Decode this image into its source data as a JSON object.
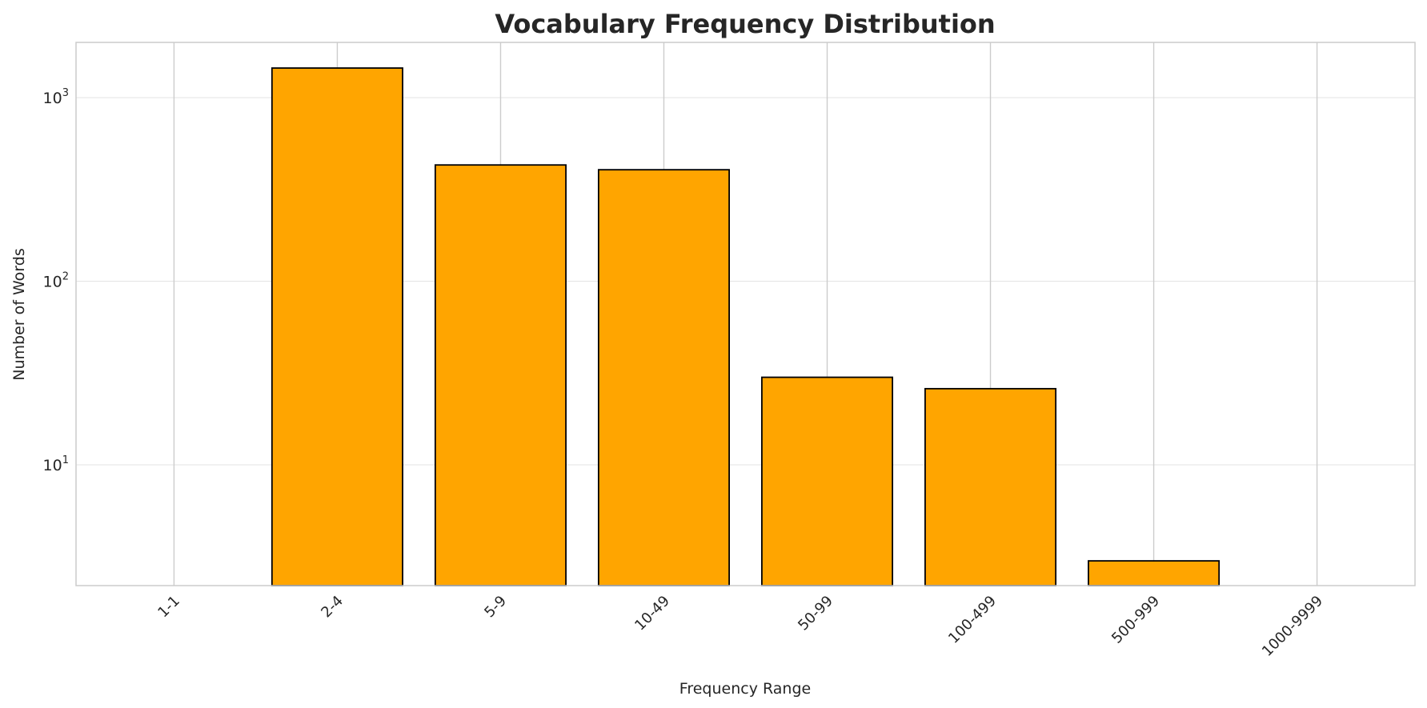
{
  "chart_data": {
    "type": "bar",
    "title": "Vocabulary Frequency Distribution",
    "xlabel": "Frequency Range",
    "ylabel": "Number of Words",
    "yscale": "log",
    "ylim": [
      2.2,
      2000
    ],
    "categories": [
      "1-1",
      "2-4",
      "5-9",
      "10-49",
      "50-99",
      "100-499",
      "500-999",
      "1000-9999"
    ],
    "values": [
      null,
      1450,
      430,
      405,
      30,
      26,
      3,
      null
    ],
    "yticks": [
      {
        "value": 10,
        "base": "10",
        "exp": "1"
      },
      {
        "value": 100,
        "base": "10",
        "exp": "2"
      },
      {
        "value": 1000,
        "base": "10",
        "exp": "3"
      }
    ],
    "x_tick_rotation": "45",
    "grid": true,
    "legend": "none",
    "colors": {
      "bar_fill": "#FFA500",
      "bar_edge": "#000000",
      "grid": "#e6e6e6",
      "xgrid": "#cccccc",
      "spine": "#cccccc"
    }
  }
}
